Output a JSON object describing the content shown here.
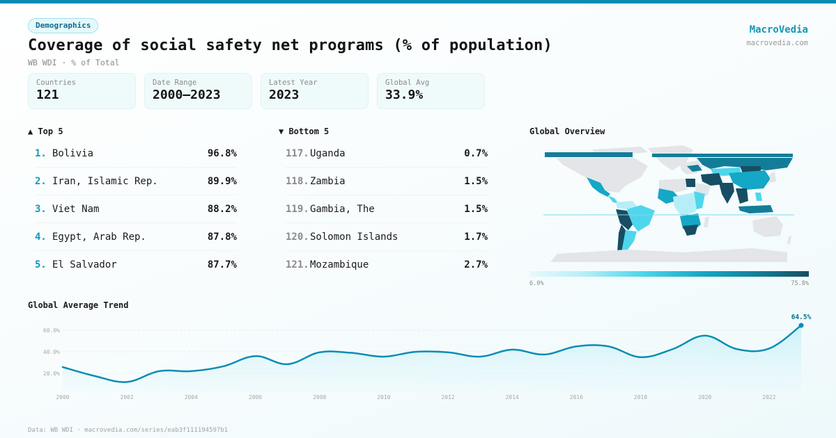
{
  "header": {
    "badge": "Demographics",
    "title": "Coverage of social safety net programs (% of population)",
    "subtitle": "WB WDI · % of Total",
    "brand_name": "MacroVedia",
    "brand_url": "macrovedia.com"
  },
  "stats": [
    {
      "label": "Countries",
      "value": "121"
    },
    {
      "label": "Date Range",
      "value": "2000–2023"
    },
    {
      "label": "Latest Year",
      "value": "2023"
    },
    {
      "label": "Global Avg",
      "value": "33.9%"
    }
  ],
  "top5": {
    "heading": "▲ Top 5",
    "items": [
      {
        "rank": "1.",
        "name": "Bolivia",
        "value": "96.8%"
      },
      {
        "rank": "2.",
        "name": "Iran, Islamic Rep.",
        "value": "89.9%"
      },
      {
        "rank": "3.",
        "name": "Viet Nam",
        "value": "88.2%"
      },
      {
        "rank": "4.",
        "name": "Egypt, Arab Rep.",
        "value": "87.8%"
      },
      {
        "rank": "5.",
        "name": "El Salvador",
        "value": "87.7%"
      }
    ]
  },
  "bottom5": {
    "heading": "▼ Bottom 5",
    "items": [
      {
        "rank": "117.",
        "name": "Uganda",
        "value": "0.7%"
      },
      {
        "rank": "118.",
        "name": "Zambia",
        "value": "1.5%"
      },
      {
        "rank": "119.",
        "name": "Gambia, The",
        "value": "1.5%"
      },
      {
        "rank": "120.",
        "name": "Solomon Islands",
        "value": "1.7%"
      },
      {
        "rank": "121.",
        "name": "Mozambique",
        "value": "2.7%"
      }
    ]
  },
  "map": {
    "heading": "Global Overview",
    "legend_min": "6.0%",
    "legend_max": "75.8%",
    "colors": {
      "none": "#e3e5e8",
      "low": "#b6eef7",
      "mid": "#4fd6ec",
      "midhigh": "#14a7c6",
      "high": "#137d99",
      "top": "#174e63"
    }
  },
  "trend": {
    "heading": "Global Average Trend",
    "last_label": "64.5%"
  },
  "footer": "Data: WB WDI · macrovedia.com/series/eab3f111194597b1",
  "chart_data": {
    "type": "area",
    "title": "Global Average Trend",
    "xlabel": "",
    "ylabel": "",
    "x": [
      2000,
      2001,
      2002,
      2003,
      2004,
      2005,
      2006,
      2007,
      2008,
      2009,
      2010,
      2011,
      2012,
      2013,
      2014,
      2015,
      2016,
      2017,
      2018,
      2019,
      2020,
      2021,
      2022,
      2023
    ],
    "values": [
      25.8,
      17.5,
      12.0,
      22.0,
      22.0,
      26.5,
      36.0,
      28.5,
      39.5,
      39.0,
      35.5,
      40.0,
      39.5,
      35.5,
      42.0,
      37.5,
      45.0,
      45.0,
      35.0,
      42.5,
      55.0,
      42.5,
      43.0,
      64.5
    ],
    "yticks": [
      "20.0%",
      "40.0%",
      "60.0%"
    ],
    "ytick_values": [
      20,
      40,
      60
    ],
    "xticks": [
      "2000",
      "2002",
      "2004",
      "2006",
      "2008",
      "2010",
      "2012",
      "2014",
      "2016",
      "2018",
      "2020",
      "2022"
    ],
    "ylim": [
      0,
      70
    ],
    "grid": true,
    "annotation": "64.5%",
    "color": "#0b8db3"
  }
}
